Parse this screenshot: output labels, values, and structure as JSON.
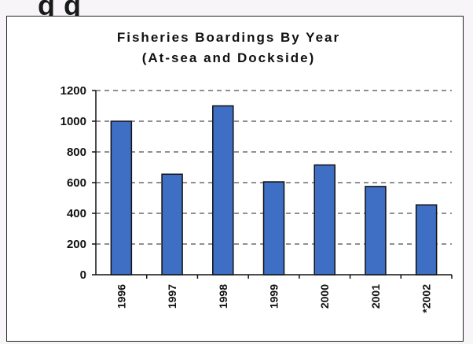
{
  "page": {
    "heading_fragment": "g                        g"
  },
  "chart_data": {
    "type": "bar",
    "title": "Fisheries Boardings By Year",
    "subtitle": "(At-sea and Dockside)",
    "xlabel": "",
    "ylabel": "",
    "categories": [
      "1996",
      "1997",
      "1998",
      "1999",
      "2000",
      "2001",
      "*2002"
    ],
    "values": [
      1000,
      655,
      1100,
      605,
      715,
      575,
      455
    ],
    "yticks": [
      0,
      200,
      400,
      600,
      800,
      1000,
      1200
    ],
    "ylim": [
      0,
      1200
    ],
    "grid": "dashed horizontal",
    "legend": "none",
    "bar_color": "#3e6fc4",
    "bar_border_color": "#111111"
  }
}
